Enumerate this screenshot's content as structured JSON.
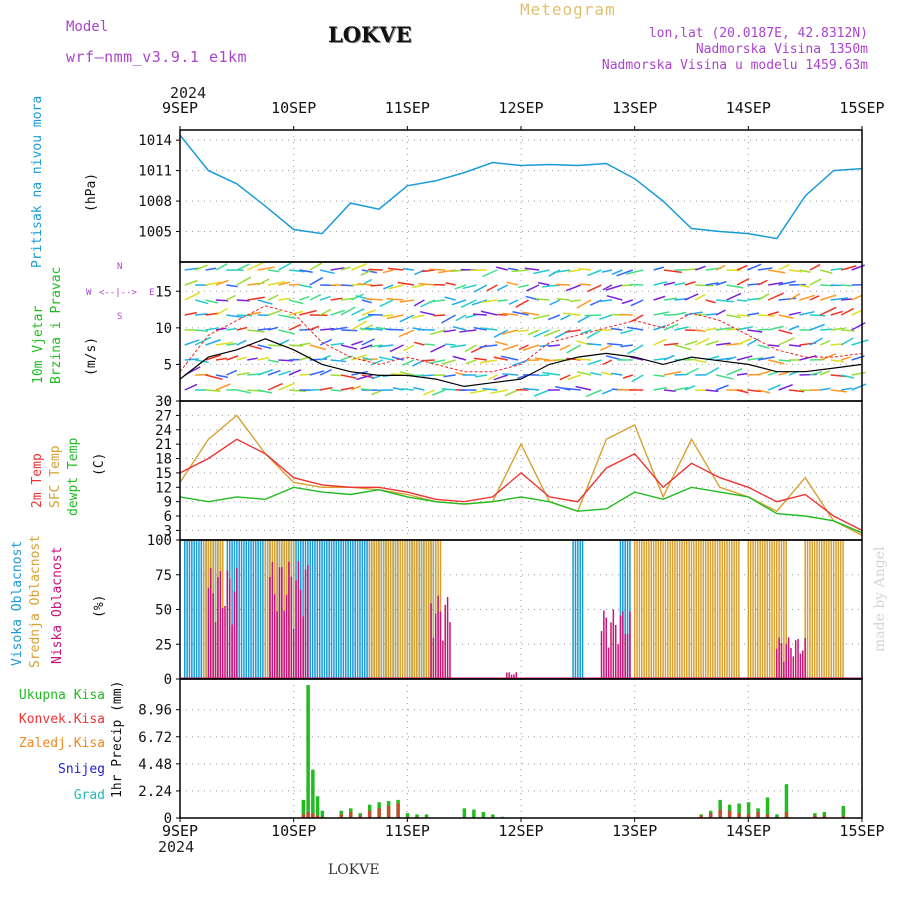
{
  "header": {
    "model_label": "Model",
    "model_name": "wrf—nmm_v3.9.1  e1km",
    "station": "LOKVE",
    "title": "Meteogram",
    "coords": "lon,lat (20.0187E, 42.8312N)",
    "altitude": "Nadmorska Visina 1350m",
    "model_altitude": "Nadmorska Visina u modelu 1459.63m",
    "year_top": "2024",
    "year_bottom": "2024",
    "footer_station": "LOKVE",
    "credit": "made by Angel"
  },
  "colors": {
    "pressure": "#1a9bd8",
    "wind_label": "#22bb22",
    "wind_speed": "#000000",
    "gust": "#ee2222",
    "temp2m": "#ee3333",
    "sfc_temp": "#d8a030",
    "dewpoint": "#22bb22",
    "cloud_high": "#1a9bd8",
    "cloud_mid": "#d8a030",
    "cloud_low": "#cc1177",
    "precip_total": "#22bb22",
    "precip_conv": "#ee3333",
    "precip_frozen": "#ee8822",
    "snow": "#2222cc",
    "hail": "#22bbbb",
    "direction_legend": "#aa44cc",
    "header_purple": "#aa44cc",
    "header_gold": "#e0c070",
    "credit": "#d0d8d0"
  },
  "chart_data": [
    {
      "type": "line",
      "panel": "pressure",
      "title": "Pritisak na nivou mora",
      "ylabel": "(hPa)",
      "ylim": [
        1002,
        1015
      ],
      "y_ticks": [
        "1005",
        "1008",
        "1011",
        "1014"
      ],
      "grid": true,
      "x_hours": [
        0,
        6,
        12,
        18,
        24,
        30,
        36,
        42,
        48,
        54,
        60,
        66,
        72,
        78,
        84,
        90,
        96,
        102,
        108,
        114,
        120,
        126,
        132,
        138,
        144
      ],
      "series": [
        {
          "name": "",
          "values": [
            1014.5,
            1011,
            1009.7,
            1007.5,
            1005.2,
            1004.8,
            1007.8,
            1007.2,
            1009.5,
            1010.0,
            1010.8,
            1011.8,
            1011.5,
            1011.6,
            1011.5,
            1011.7,
            1010.2,
            1008.0,
            1005.3,
            1005.0,
            1004.8,
            1004.3,
            1008.5,
            1011.0,
            1011.2
          ]
        }
      ]
    },
    {
      "type": "line",
      "panel": "wind",
      "title": "10m Vjetar Brzina i Pravac",
      "ylabel": "(m/s)",
      "ylim": [
        0,
        19
      ],
      "y_ticks": [
        "0",
        "5",
        "10",
        "15"
      ],
      "grid": true,
      "direction_legend": [
        "N",
        "<--|-->",
        "W",
        "E",
        "S"
      ],
      "x_hours": [
        0,
        6,
        12,
        18,
        24,
        30,
        36,
        42,
        48,
        54,
        60,
        66,
        72,
        78,
        84,
        90,
        96,
        102,
        108,
        114,
        120,
        126,
        132,
        138,
        144
      ],
      "series": [
        {
          "name": "",
          "values": [
            3,
            6,
            7,
            8.5,
            7,
            5,
            4,
            3.5,
            3.5,
            3,
            2,
            2.5,
            3,
            5,
            6,
            6.5,
            6,
            5,
            6,
            5.5,
            5,
            4,
            4,
            4.5,
            5
          ]
        },
        {
          "name": "",
          "values": [
            4,
            9,
            11,
            13,
            12,
            8,
            6,
            5,
            6,
            5,
            4,
            4,
            5,
            8,
            9,
            10,
            11,
            10,
            12,
            11,
            9,
            7,
            6,
            6,
            6.5
          ]
        }
      ]
    },
    {
      "type": "line",
      "panel": "temperature",
      "title": "2m Temp / SFC Temp / dewpt Temp",
      "ylabel": "(C)",
      "ylim": [
        1,
        30
      ],
      "y_ticks": [
        "3",
        "6",
        "9",
        "12",
        "15",
        "18",
        "21",
        "24",
        "27",
        "30"
      ],
      "grid": true,
      "x_hours": [
        0,
        6,
        12,
        18,
        24,
        30,
        36,
        42,
        48,
        54,
        60,
        66,
        72,
        78,
        84,
        90,
        96,
        102,
        108,
        114,
        120,
        126,
        132,
        138,
        144
      ],
      "series": [
        {
          "name": "2m Temp",
          "values": [
            15,
            18,
            22,
            19,
            14,
            12.5,
            12,
            12,
            11,
            9.5,
            9,
            10,
            15,
            10,
            9,
            16,
            19,
            12,
            17,
            14,
            12,
            9,
            10.5,
            6,
            3
          ]
        },
        {
          "name": "SFC Temp",
          "values": [
            13,
            22,
            27,
            19,
            13,
            12,
            12,
            11.5,
            10.5,
            9,
            8.5,
            9,
            21,
            9,
            7,
            22,
            25,
            10,
            22,
            12,
            10,
            7,
            14,
            5,
            2
          ]
        },
        {
          "name": "dewpt Temp",
          "values": [
            10,
            9,
            10,
            9.5,
            12,
            11,
            10.5,
            11.5,
            10,
            9,
            8.5,
            9,
            10,
            9,
            7,
            7.5,
            11,
            9.5,
            12,
            11,
            10,
            6.5,
            6,
            5,
            2.5
          ]
        }
      ]
    },
    {
      "type": "bar",
      "panel": "clouds",
      "title": "Visoka / Srednja / Niska Oblacnost",
      "ylabel": "(%)",
      "ylim": [
        0,
        100
      ],
      "y_ticks": [
        "0",
        "25",
        "50",
        "75",
        "100"
      ],
      "grid": true,
      "bar_ranges_hours": {
        "high": [
          [
            1,
            9
          ],
          [
            10,
            19
          ],
          [
            20,
            46
          ],
          [
            48,
            54
          ],
          [
            83,
            85
          ],
          [
            93,
            95
          ]
        ],
        "mid": [
          [
            5,
            9
          ],
          [
            18,
            24
          ],
          [
            40,
            55
          ],
          [
            96,
            118
          ],
          [
            120,
            128
          ],
          [
            132,
            140
          ]
        ],
        "low": [
          [
            6,
            12
          ],
          [
            19,
            27
          ],
          [
            53,
            57
          ],
          [
            69,
            71
          ],
          [
            89,
            95
          ],
          [
            126,
            132
          ]
        ]
      },
      "series": [
        {
          "name": "Visoka Oblacnost",
          "values": [
            100,
            100,
            100,
            100,
            100,
            100
          ]
        },
        {
          "name": "Srednja Oblacnost",
          "values": [
            100,
            100,
            100,
            100,
            100,
            100
          ]
        },
        {
          "name": "Niska Oblacnost",
          "values": [
            80,
            85,
            60,
            5,
            50,
            30
          ]
        }
      ]
    },
    {
      "type": "bar",
      "panel": "precipitation",
      "ylabel": "1hr Precip (mm)",
      "ylim": [
        0,
        11.5
      ],
      "y_ticks": [
        "0",
        "2.24",
        "4.48",
        "6.72",
        "8.96"
      ],
      "grid": true,
      "legend": [
        "Ukupna Kisa",
        "Konvek.Kisa",
        "Zaledj.Kisa",
        "Snijeg",
        "Grad"
      ],
      "x_hours": [
        26,
        27,
        28,
        29,
        30,
        34,
        36,
        38,
        40,
        42,
        44,
        46,
        48,
        50,
        52,
        60,
        62,
        64,
        66,
        68,
        110,
        112,
        114,
        116,
        118,
        120,
        122,
        124,
        126,
        128,
        134,
        136,
        140
      ],
      "series": [
        {
          "name": "Ukupna Kisa",
          "values": [
            1.5,
            11.0,
            4.0,
            1.8,
            0.6,
            0.6,
            0.8,
            0.4,
            1.1,
            1.3,
            1.4,
            1.5,
            0.4,
            0.3,
            0.3,
            0.8,
            0.7,
            0.5,
            0.3,
            0.1,
            0.3,
            0.6,
            1.5,
            1.1,
            1.2,
            1.3,
            0.8,
            1.7,
            0.3,
            2.8,
            0.4,
            0.5,
            1.0
          ]
        },
        {
          "name": "Konvek.Kisa",
          "values": [
            0.3,
            0.5,
            0.4,
            0.2,
            0.1,
            0.3,
            0.5,
            0.2,
            0.6,
            0.8,
            1.0,
            1.2,
            0.1,
            0.1,
            0,
            0,
            0,
            0,
            0,
            0,
            0.2,
            0.4,
            0.7,
            0.6,
            0.4,
            0.3,
            0.5,
            0.3,
            0.1,
            0.5,
            0.2,
            0.2,
            0.2
          ]
        }
      ]
    }
  ],
  "x_axis": {
    "ticks": [
      "9SEP",
      "10SEP",
      "11SEP",
      "12SEP",
      "13SEP",
      "14SEP",
      "15SEP"
    ]
  }
}
